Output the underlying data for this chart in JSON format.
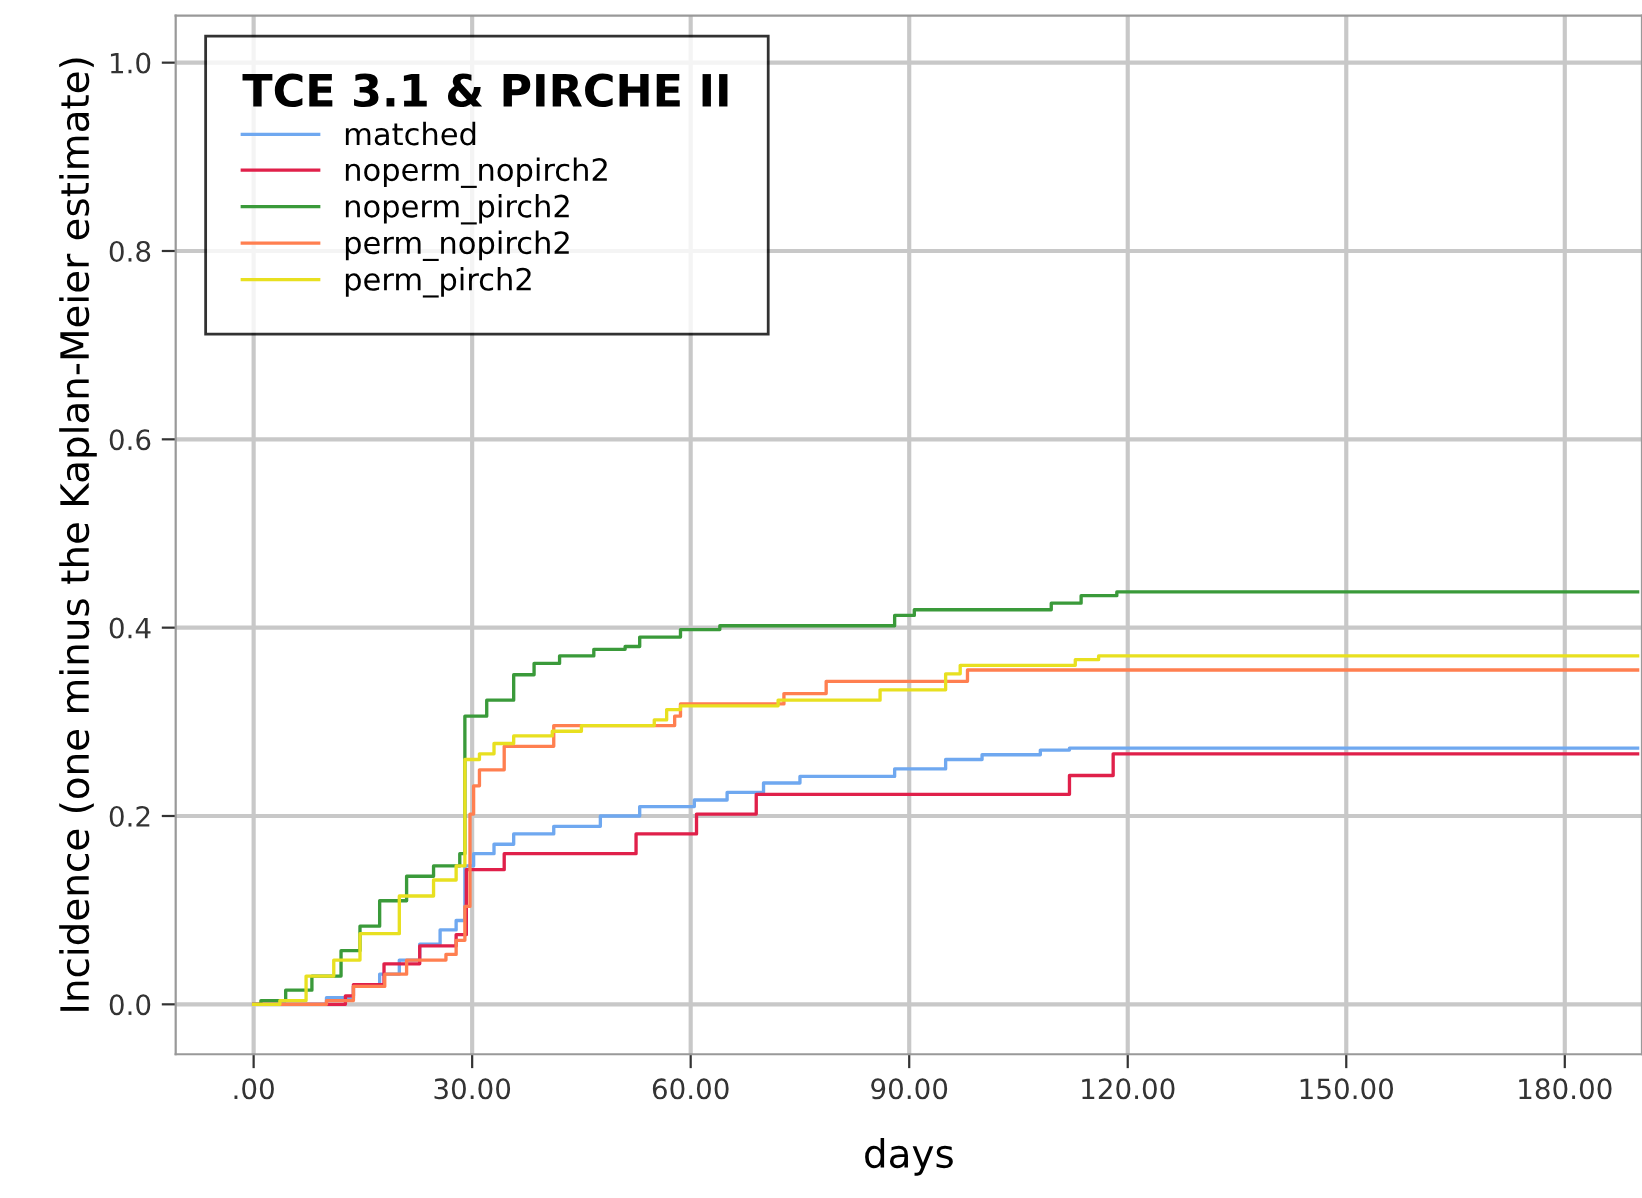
{
  "chart_data": {
    "type": "step",
    "xlabel": "days",
    "ylabel": "Incidence (one minus the Kaplan-Meier estimate)",
    "legend_title": "TCE 3.1 & PIRCHE II",
    "legend": "top left",
    "grid": true,
    "xlim": [
      -10.7,
      190.6
    ],
    "ylim": [
      -0.053,
      1.05
    ],
    "xticks": [
      {
        "value": 0,
        "label": ".00"
      },
      {
        "value": 30,
        "label": "30.00"
      },
      {
        "value": 60,
        "label": "60.00"
      },
      {
        "value": 90,
        "label": "90.00"
      },
      {
        "value": 120,
        "label": "120.00"
      },
      {
        "value": 150,
        "label": "150.00"
      },
      {
        "value": 180,
        "label": "180.00"
      }
    ],
    "yticks": [
      {
        "value": 0,
        "label": "0.0"
      },
      {
        "value": 0.2,
        "label": "0.2"
      },
      {
        "value": 0.4,
        "label": "0.4"
      },
      {
        "value": 0.6,
        "label": "0.6"
      },
      {
        "value": 0.8,
        "label": "0.8"
      },
      {
        "value": 1.0,
        "label": "1.0"
      }
    ],
    "series": [
      {
        "name": "matched",
        "color": "#6fa8f0",
        "x": [
          0,
          10,
          13.7,
          17.3,
          20,
          22.8,
          25.6,
          27.8,
          29,
          30.2,
          33,
          35.7,
          41.2,
          47.6,
          53,
          60.5,
          65,
          70,
          75,
          88,
          95,
          100,
          108,
          112,
          190
        ],
        "values": [
          0,
          0.007,
          0.019,
          0.032,
          0.047,
          0.064,
          0.079,
          0.089,
          0.147,
          0.16,
          0.17,
          0.181,
          0.189,
          0.2,
          0.21,
          0.217,
          0.225,
          0.235,
          0.242,
          0.25,
          0.26,
          0.265,
          0.27,
          0.272,
          0.272
        ]
      },
      {
        "name": "noperm_nopirch2",
        "color": "#e0204a",
        "x": [
          0,
          12.6,
          13.7,
          17.9,
          22.8,
          27.8,
          29.2,
          34.4,
          52.5,
          60.8,
          69,
          112,
          118,
          190
        ],
        "values": [
          0,
          0.009,
          0.021,
          0.043,
          0.062,
          0.074,
          0.143,
          0.16,
          0.181,
          0.202,
          0.223,
          0.243,
          0.266,
          0.266
        ]
      },
      {
        "name": "noperm_pirch2",
        "color": "#3a9a3a",
        "x": [
          0,
          1,
          4.4,
          8,
          12,
          14.6,
          17.3,
          21,
          24.7,
          28.3,
          29,
          32,
          35.7,
          38.5,
          42,
          46.7,
          51,
          53,
          58.6,
          64,
          88,
          90.7,
          109.5,
          113.6,
          118.5,
          190
        ],
        "values": [
          0,
          0.004,
          0.015,
          0.03,
          0.057,
          0.083,
          0.11,
          0.136,
          0.147,
          0.16,
          0.306,
          0.323,
          0.35,
          0.362,
          0.37,
          0.377,
          0.38,
          0.39,
          0.398,
          0.402,
          0.413,
          0.419,
          0.426,
          0.434,
          0.438,
          0.438
        ]
      },
      {
        "name": "perm_nopirch2",
        "color": "#ff7f50",
        "x": [
          0,
          10,
          13.7,
          18,
          21,
          26.4,
          27.8,
          29,
          29.7,
          30.2,
          31,
          34.4,
          41.2,
          57.8,
          58.6,
          72.8,
          78.6,
          98,
          190
        ],
        "values": [
          0,
          0.004,
          0.019,
          0.032,
          0.047,
          0.053,
          0.068,
          0.104,
          0.202,
          0.232,
          0.249,
          0.274,
          0.296,
          0.306,
          0.319,
          0.33,
          0.343,
          0.355,
          0.355
        ]
      },
      {
        "name": "perm_pirch2",
        "color": "#e8e020",
        "x": [
          0,
          3.6,
          7.2,
          11,
          14.6,
          20,
          24.7,
          27.8,
          29,
          31,
          33,
          35.7,
          41,
          45,
          55,
          56.7,
          58.6,
          72,
          86,
          95,
          97,
          112.8,
          116,
          190
        ],
        "values": [
          0,
          0.004,
          0.03,
          0.047,
          0.075,
          0.115,
          0.132,
          0.147,
          0.26,
          0.266,
          0.277,
          0.285,
          0.29,
          0.296,
          0.302,
          0.313,
          0.317,
          0.323,
          0.334,
          0.351,
          0.36,
          0.366,
          0.37,
          0.37
        ]
      }
    ]
  }
}
